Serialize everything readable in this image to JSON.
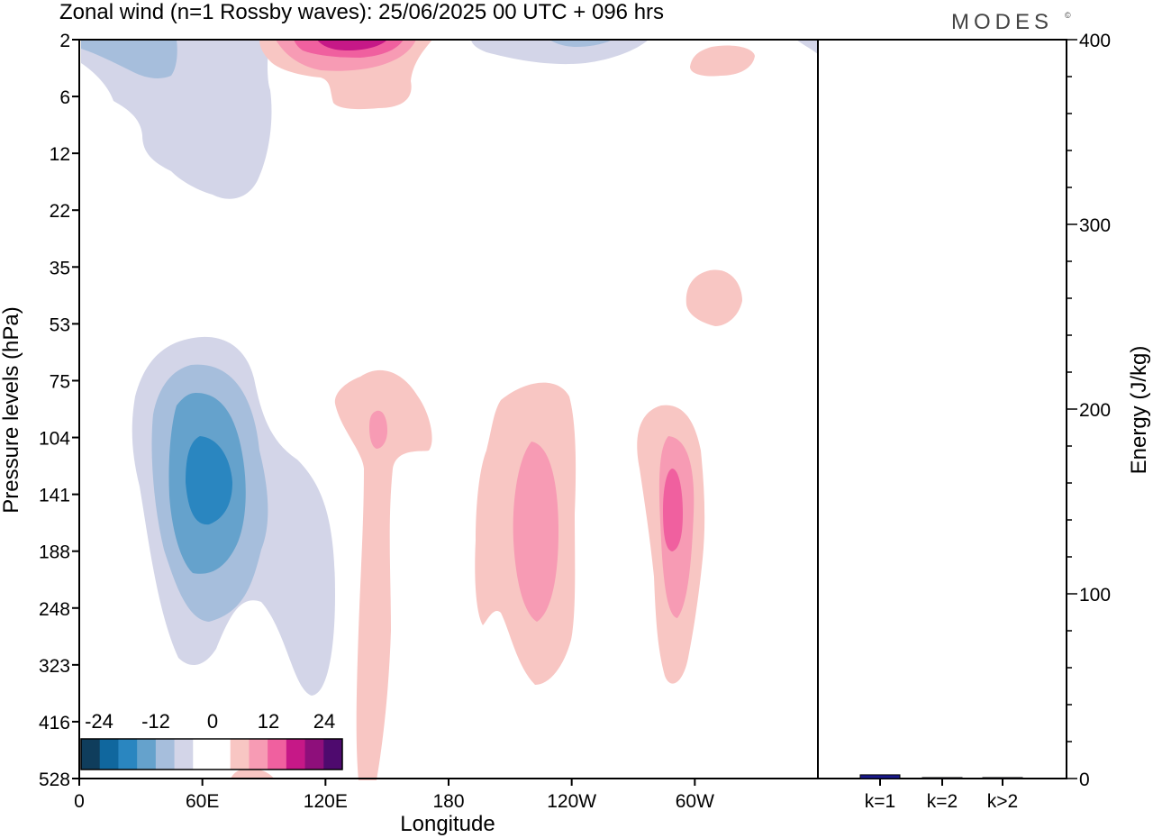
{
  "header": {
    "title": "Zonal wind (n=1 Rossby waves):  25/06/2025  00 UTC  + 096 hrs",
    "logo": "MODES",
    "logo_mark": "©"
  },
  "colors": {
    "neg": [
      "#0f3d5c",
      "#10679e",
      "#2a86c0",
      "#65a2cc",
      "#a6bedc",
      "#d3d5e8"
    ],
    "zero": "#ffffff",
    "pos": [
      "#f8c6c3",
      "#f79bb4",
      "#f0609f",
      "#c61887",
      "#8e0f7b",
      "#4e0a6e"
    ],
    "bar_fill": "#1a1a8c"
  },
  "chart_data": [
    {
      "type": "heatmap",
      "title": "Zonal wind (n=1 Rossby waves):  25/06/2025  00 UTC  + 096 hrs",
      "xlabel": "Longitude",
      "ylabel": "Pressure levels (hPa)",
      "x_ticks": [
        "0",
        "60E",
        "120E",
        "180",
        "120W",
        "60W"
      ],
      "x_tick_lon": [
        0,
        60,
        120,
        180,
        240,
        300
      ],
      "xlim": [
        0,
        360
      ],
      "y_ticks": [
        "2",
        "6",
        "12",
        "22",
        "35",
        "53",
        "75",
        "104",
        "141",
        "188",
        "248",
        "323",
        "416",
        "528"
      ],
      "y_scale": "pressure levels (hPa), 2 at top to 528 at bottom",
      "colorbar": {
        "labels": [
          "-24",
          "-12",
          "0",
          "12",
          "24"
        ],
        "levels": [
          -24,
          -20,
          -16,
          -12,
          -8,
          -4,
          4,
          8,
          12,
          16,
          20,
          24
        ]
      },
      "features": [
        {
          "sign": "negative",
          "lon": 60,
          "level_hPa": 120,
          "min_value": -16
        },
        {
          "sign": "negative",
          "lon": 40,
          "level_hPa": 6,
          "min_value": -8
        },
        {
          "sign": "positive",
          "lon": 130,
          "level_hPa": 2,
          "max_value": 16
        },
        {
          "sign": "positive",
          "lon": 150,
          "level_hPa": 104,
          "max_value": 8
        },
        {
          "sign": "positive",
          "lon": 220,
          "level_hPa": 150,
          "max_value": 8
        },
        {
          "sign": "positive",
          "lon": 290,
          "level_hPa": 140,
          "max_value": 12
        },
        {
          "sign": "positive",
          "lon": 310,
          "level_hPa": 40,
          "max_value": 4
        }
      ]
    },
    {
      "type": "bar",
      "ylabel": "Energy (J/kg)",
      "categories": [
        "k=1",
        "k=2",
        "k>2"
      ],
      "values": [
        2,
        0.5,
        0.5
      ],
      "ylim": [
        0,
        400
      ],
      "y_ticks": [
        "0",
        "100",
        "200",
        "300",
        "400"
      ],
      "y_tick_values": [
        0,
        100,
        200,
        300,
        400
      ]
    }
  ]
}
